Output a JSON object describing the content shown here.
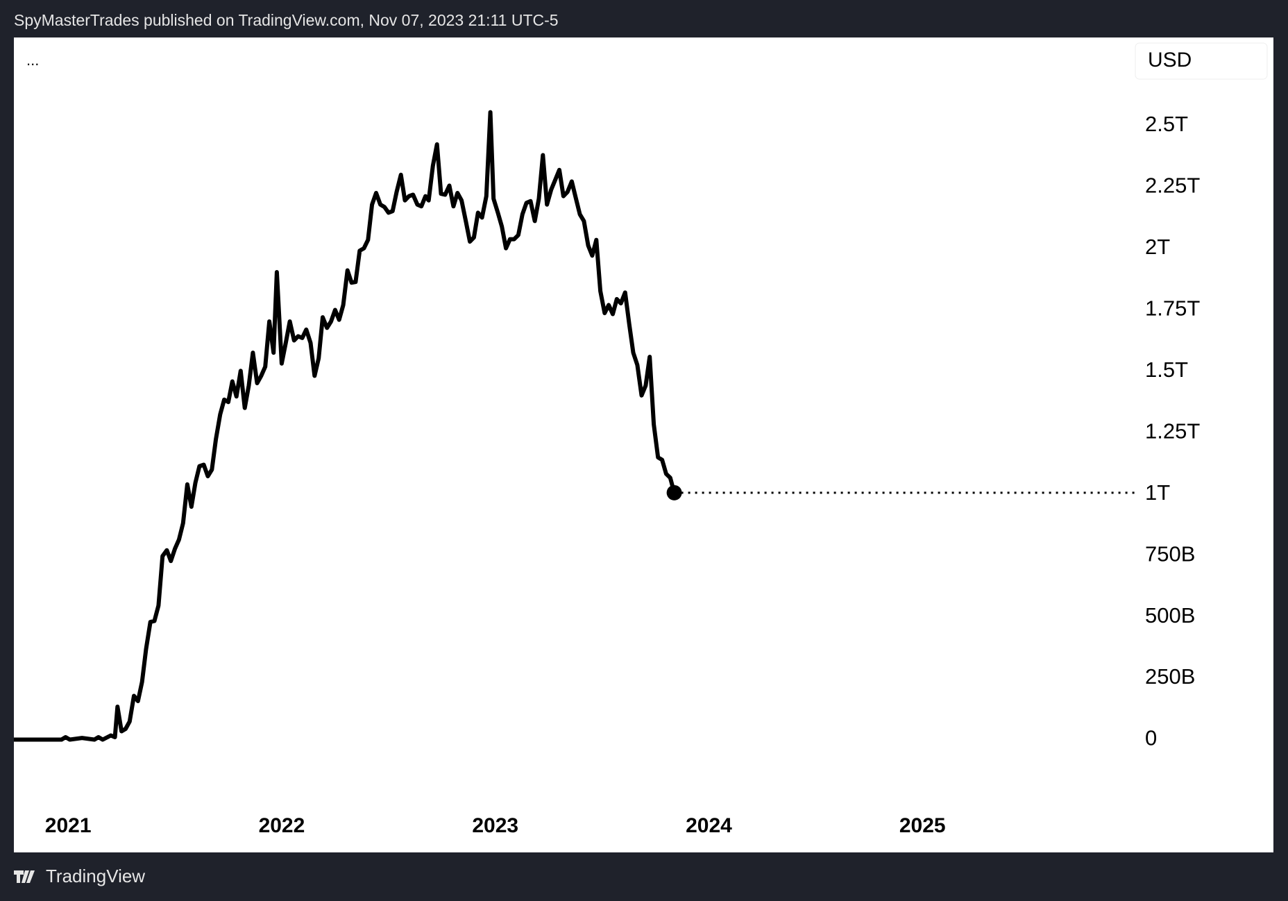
{
  "chart_data": {
    "type": "line",
    "header": "SpyMasterTrades published on TradingView.com, Nov 07, 2023 21:11 UTC-5",
    "menu": "...",
    "currency": "USD",
    "footer": "TradingView",
    "color": "#000000",
    "x": [
      2020.746,
      2020.969,
      2020.988,
      2021.008,
      2021.065,
      2021.123,
      2021.142,
      2021.162,
      2021.2,
      2021.219,
      2021.231,
      2021.25,
      2021.269,
      2021.288,
      2021.308,
      2021.327,
      2021.346,
      2021.365,
      2021.385,
      2021.404,
      2021.423,
      2021.442,
      2021.462,
      2021.481,
      2021.5,
      2021.519,
      2021.538,
      2021.558,
      2021.577,
      2021.596,
      2021.615,
      2021.635,
      2021.654,
      2021.673,
      2021.692,
      2021.712,
      2021.731,
      2021.75,
      2021.769,
      2021.788,
      2021.808,
      2021.827,
      2021.846,
      2021.865,
      2021.885,
      2021.904,
      2021.923,
      2021.942,
      2021.962,
      2021.977,
      2022.0,
      2022.019,
      2022.038,
      2022.058,
      2022.077,
      2022.096,
      2022.115,
      2022.135,
      2022.154,
      2022.173,
      2022.192,
      2022.212,
      2022.231,
      2022.25,
      2022.269,
      2022.288,
      2022.308,
      2022.327,
      2022.346,
      2022.365,
      2022.385,
      2022.404,
      2022.423,
      2022.442,
      2022.462,
      2022.481,
      2022.5,
      2022.519,
      2022.538,
      2022.558,
      2022.577,
      2022.596,
      2022.615,
      2022.635,
      2022.654,
      2022.673,
      2022.688,
      2022.708,
      2022.727,
      2022.746,
      2022.765,
      2022.785,
      2022.804,
      2022.823,
      2022.842,
      2022.862,
      2022.881,
      2022.9,
      2022.919,
      2022.938,
      2022.958,
      2022.977,
      2022.992,
      2023.012,
      2023.031,
      2023.05,
      2023.069,
      2023.088,
      2023.108,
      2023.127,
      2023.146,
      2023.165,
      2023.185,
      2023.204,
      2023.223,
      2023.242,
      2023.262,
      2023.281,
      2023.3,
      2023.319,
      2023.338,
      2023.358,
      2023.377,
      2023.396,
      2023.415,
      2023.435,
      2023.454,
      2023.473,
      2023.492,
      2023.512,
      2023.531,
      2023.55,
      2023.569,
      2023.588,
      2023.608,
      2023.627,
      2023.646,
      2023.665,
      2023.685,
      2023.704,
      2023.723,
      2023.742,
      2023.762,
      2023.781,
      2023.8,
      2023.819,
      2023.838
    ],
    "values": [
      0,
      0,
      10,
      0,
      7,
      0,
      10,
      0,
      17,
      10,
      134,
      34,
      44,
      74,
      178,
      157,
      235,
      369,
      479,
      483,
      546,
      747,
      771,
      727,
      777,
      814,
      881,
      1039,
      948,
      1046,
      1113,
      1119,
      1072,
      1099,
      1223,
      1324,
      1384,
      1374,
      1458,
      1397,
      1501,
      1350,
      1441,
      1575,
      1451,
      1481,
      1518,
      1702,
      1575,
      1903,
      1531,
      1615,
      1702,
      1625,
      1642,
      1635,
      1669,
      1615,
      1481,
      1552,
      1719,
      1676,
      1702,
      1749,
      1709,
      1769,
      1910,
      1860,
      1863,
      1990,
      2000,
      2034,
      2178,
      2225,
      2178,
      2168,
      2145,
      2151,
      2229,
      2299,
      2195,
      2212,
      2218,
      2178,
      2171,
      2212,
      2195,
      2336,
      2423,
      2222,
      2218,
      2255,
      2171,
      2225,
      2195,
      2111,
      2027,
      2044,
      2145,
      2125,
      2212,
      2554,
      2202,
      2145,
      2088,
      2000,
      2037,
      2037,
      2054,
      2138,
      2185,
      2192,
      2111,
      2202,
      2379,
      2178,
      2239,
      2279,
      2319,
      2212,
      2229,
      2272,
      2205,
      2138,
      2111,
      2011,
      1970,
      2034,
      1826,
      1736,
      1769,
      1732,
      1793,
      1776,
      1820,
      1692,
      1575,
      1525,
      1401,
      1441,
      1558,
      1283,
      1149,
      1139,
      1082,
      1066,
      1005
    ],
    "xlim": [
      2020.746,
      2026.0
    ],
    "xticks": [
      2021,
      2022,
      2023,
      2024,
      2025
    ],
    "ylim": [
      -459,
      2858
    ],
    "yticks": [
      {
        "value": 0,
        "label": "0"
      },
      {
        "value": 250,
        "label": "250B"
      },
      {
        "value": 500,
        "label": "500B"
      },
      {
        "value": 750,
        "label": "750B"
      },
      {
        "value": 1000,
        "label": "1T"
      },
      {
        "value": 1250,
        "label": "1.25T"
      },
      {
        "value": 1500,
        "label": "1.5T"
      },
      {
        "value": 1750,
        "label": "1.75T"
      },
      {
        "value": 2000,
        "label": "2T"
      },
      {
        "value": 2250,
        "label": "2.25T"
      },
      {
        "value": 2500,
        "label": "2.5T"
      }
    ]
  }
}
